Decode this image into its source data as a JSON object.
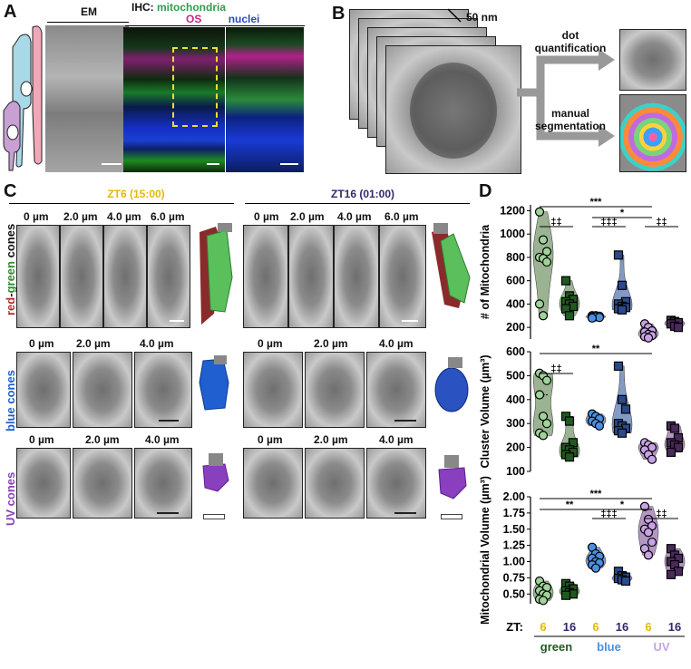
{
  "panel_letters": {
    "a": "A",
    "b": "B",
    "c": "C",
    "d": "D"
  },
  "panel_a": {
    "em_title": "EM",
    "ihc_title": "IHC:",
    "ihc_mito": "mitochondria",
    "ihc_os": "OS",
    "ihc_nuclei": "nuclei"
  },
  "panel_b": {
    "scale": "50 nm",
    "arrow_top": [
      "dot",
      "quantification"
    ],
    "arrow_bottom": [
      "manual",
      "segmentation"
    ]
  },
  "panel_c": {
    "zt6_title": "ZT6 (15:00)",
    "zt16_title": "ZT16 (01:00)",
    "rows": [
      {
        "label_parts": [
          "red",
          "-",
          "green",
          " cones"
        ],
        "depths": [
          "0 µm",
          "2.0 µm",
          "4.0 µm",
          "6.0 µm"
        ]
      },
      {
        "label_parts": [
          "blue cones"
        ],
        "depths": [
          "0 µm",
          "2.0 µm",
          "4.0 µm"
        ]
      },
      {
        "label_parts": [
          "UV cones"
        ],
        "depths": [
          "0 µm",
          "2.0 µm",
          "4.0 µm"
        ]
      }
    ],
    "colors": {
      "red": "#b03030",
      "green": "#2e8b2e",
      "blue": "#1f5fd0",
      "uv": "#8a3fbf",
      "zt6": "#e6b800",
      "zt16": "#2e2a6e"
    }
  },
  "chart_data": [
    {
      "type": "violin",
      "ylabel": "# of Mitochondria",
      "ylim": [
        100,
        1250
      ],
      "yticks": [
        200,
        400,
        600,
        800,
        1000,
        1200
      ],
      "groups": [
        {
          "cone": "green",
          "zt": "6",
          "values": [
            1190,
            950,
            850,
            800,
            790,
            760,
            400,
            300
          ]
        },
        {
          "cone": "green",
          "zt": "16",
          "values": [
            600,
            470,
            440,
            420,
            400,
            380,
            360,
            300
          ]
        },
        {
          "cone": "blue",
          "zt": "6",
          "values": [
            300,
            300,
            295,
            290,
            290,
            285,
            280
          ]
        },
        {
          "cone": "blue",
          "zt": "16",
          "values": [
            820,
            560,
            420,
            400,
            380,
            370,
            360,
            350
          ]
        },
        {
          "cone": "UV",
          "zt": "6",
          "values": [
            230,
            200,
            170,
            160,
            140,
            130,
            120,
            110
          ]
        },
        {
          "cone": "UV",
          "zt": "16",
          "values": [
            260,
            250,
            240,
            230,
            210,
            200
          ]
        }
      ],
      "significance": [
        {
          "label": "‡‡",
          "from": 0,
          "to": 1
        },
        {
          "label": "***",
          "from": 0,
          "to": 4
        },
        {
          "label": "*",
          "from": 2,
          "to": 4
        },
        {
          "label": "‡‡‡",
          "from": 2,
          "to": 3
        },
        {
          "label": "‡‡",
          "from": 4,
          "to": 5
        }
      ]
    },
    {
      "type": "violin",
      "ylabel": "Cluster Volume (µm³)",
      "ylim": [
        100,
        600
      ],
      "yticks": [
        100,
        200,
        300,
        400,
        500,
        600
      ],
      "groups": [
        {
          "cone": "green",
          "zt": "6",
          "values": [
            510,
            500,
            480,
            420,
            330,
            300,
            260,
            250
          ]
        },
        {
          "cone": "green",
          "zt": "16",
          "values": [
            330,
            310,
            220,
            200,
            190,
            180,
            170,
            160
          ]
        },
        {
          "cone": "blue",
          "zt": "6",
          "values": [
            340,
            330,
            320,
            310,
            300,
            290
          ]
        },
        {
          "cone": "blue",
          "zt": "16",
          "values": [
            540,
            400,
            360,
            300,
            290,
            280,
            270,
            260
          ]
        },
        {
          "cone": "UV",
          "zt": "6",
          "values": [
            220,
            210,
            200,
            190,
            170,
            150
          ]
        },
        {
          "cone": "UV",
          "zt": "16",
          "values": [
            290,
            280,
            240,
            220,
            210,
            200,
            180
          ]
        }
      ],
      "significance": [
        {
          "label": "‡‡",
          "from": 0,
          "to": 1
        },
        {
          "label": "**",
          "from": 0,
          "to": 4
        }
      ]
    },
    {
      "type": "violin",
      "ylabel": "Mitochondrial Volume (µm³)",
      "ylim": [
        0.35,
        2.0
      ],
      "yticks": [
        0.5,
        0.75,
        1.0,
        1.25,
        1.5,
        1.75,
        2.0
      ],
      "groups": [
        {
          "cone": "green",
          "zt": "6",
          "values": [
            0.7,
            0.62,
            0.6,
            0.55,
            0.5,
            0.48,
            0.42,
            0.4
          ]
        },
        {
          "cone": "green",
          "zt": "16",
          "values": [
            0.66,
            0.62,
            0.58,
            0.55,
            0.52,
            0.5,
            0.48
          ]
        },
        {
          "cone": "blue",
          "zt": "6",
          "values": [
            1.22,
            1.12,
            1.08,
            1.05,
            1.0,
            0.98,
            0.95,
            0.9
          ]
        },
        {
          "cone": "blue",
          "zt": "16",
          "values": [
            0.85,
            0.78,
            0.76,
            0.74,
            0.72,
            0.7
          ]
        },
        {
          "cone": "UV",
          "zt": "6",
          "values": [
            1.85,
            1.65,
            1.55,
            1.5,
            1.45,
            1.3,
            1.2,
            1.1
          ]
        },
        {
          "cone": "UV",
          "zt": "16",
          "values": [
            1.2,
            1.1,
            1.05,
            1.0,
            0.95,
            0.85,
            0.8
          ]
        }
      ],
      "significance": [
        {
          "label": "***",
          "from": 0,
          "to": 4
        },
        {
          "label": "**",
          "from": 0,
          "to": 2
        },
        {
          "label": "*",
          "from": 2,
          "to": 4
        },
        {
          "label": "‡‡‡",
          "from": 2,
          "to": 3
        },
        {
          "label": "‡‡",
          "from": 4,
          "to": 5
        }
      ]
    }
  ],
  "x_axis": {
    "zt_label": "ZT:",
    "zt_values": [
      "6",
      "16",
      "6",
      "16",
      "6",
      "16"
    ],
    "cone_labels": [
      "green",
      "blue",
      "UV"
    ]
  },
  "colors": {
    "green_light": "#9fd39a",
    "green_dark": "#1f5a1f",
    "violin_green": "#7a9a6e",
    "blue_light": "#4a90e2",
    "blue_dark": "#2a4a8a",
    "violin_blue": "#5a7ab0",
    "uv_light": "#c9a2e6",
    "uv_dark": "#4a2a5a",
    "violin_uv": "#9a74ae",
    "zt6": "#e6b800",
    "zt16": "#2e2a6e"
  }
}
